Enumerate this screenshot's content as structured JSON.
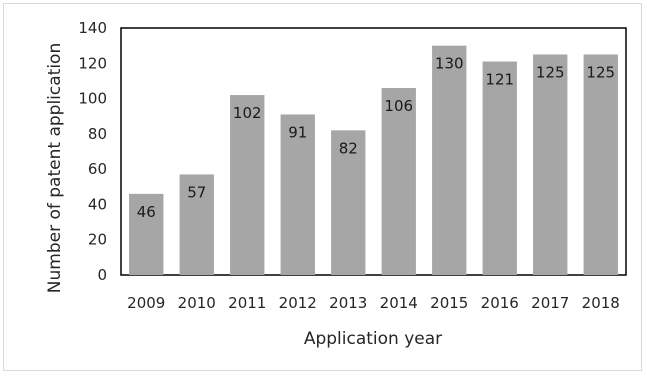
{
  "chart_data": {
    "type": "bar",
    "categories": [
      "2009",
      "2010",
      "2011",
      "2012",
      "2013",
      "2014",
      "2015",
      "2016",
      "2017",
      "2018"
    ],
    "values": [
      46,
      57,
      102,
      91,
      82,
      106,
      130,
      121,
      125,
      125
    ],
    "data_labels": [
      "46",
      "57",
      "102",
      "91",
      "82",
      "106",
      "130",
      "121",
      "125",
      "125"
    ],
    "title": "",
    "xlabel": "Application year",
    "ylabel": "Number of patent application",
    "ylim": [
      0,
      140
    ],
    "yticks": [
      "0",
      "20",
      "40",
      "60",
      "80",
      "100",
      "120",
      "140"
    ],
    "grid": false,
    "legend": "none",
    "colors": {
      "bar": "#a6a6a6",
      "axis": "#000000",
      "text": "#262626"
    }
  }
}
